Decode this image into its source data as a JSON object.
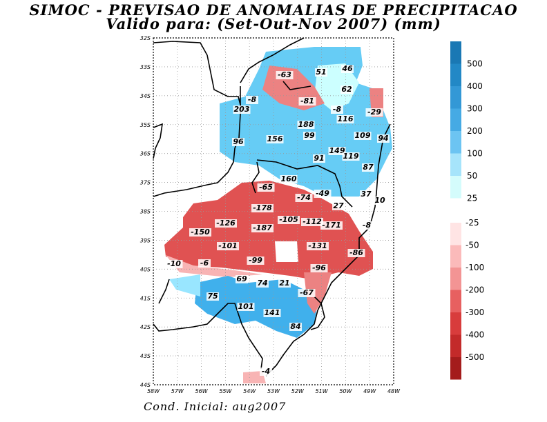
{
  "header": {
    "title": "SIMOC - PREVISAO DE ANOMALIAS DE PRECIPITACAO",
    "subtitle": "Valido para: (Set-Out-Nov 2007) (mm)"
  },
  "footer": {
    "initial_condition": "Cond. Inicial: aug2007"
  },
  "map": {
    "lat_labels": [
      "32S",
      "33S",
      "34S",
      "35S",
      "36S",
      "37S",
      "38S",
      "39S",
      "40S",
      "41S",
      "42S",
      "43S",
      "44S"
    ],
    "lon_labels": [
      "58W",
      "57W",
      "56W",
      "55W",
      "54W",
      "53W",
      "52W",
      "51W",
      "50W",
      "49W",
      "48W"
    ],
    "colors": {
      "pos_25": "#ccffff",
      "pos_50": "#99e6ff",
      "pos_100": "#66ccf5",
      "pos_200": "#40b0ec",
      "neg_25": "#ffe0e0",
      "neg_50": "#f8b4b4",
      "neg_100": "#ec8282",
      "neg_200": "#e05252",
      "border": "#000000",
      "grid": "#888888"
    },
    "values": [
      {
        "text": "-63"
      },
      {
        "text": "51"
      },
      {
        "text": "46"
      },
      {
        "text": "62"
      },
      {
        "text": "-8"
      },
      {
        "text": "-81"
      },
      {
        "text": "203"
      },
      {
        "text": "-8"
      },
      {
        "text": "-29"
      },
      {
        "text": "188"
      },
      {
        "text": "116"
      },
      {
        "text": "156"
      },
      {
        "text": "99"
      },
      {
        "text": "109"
      },
      {
        "text": "94"
      },
      {
        "text": "96"
      },
      {
        "text": "149"
      },
      {
        "text": "119"
      },
      {
        "text": "91"
      },
      {
        "text": "87"
      },
      {
        "text": "160"
      },
      {
        "text": "-65"
      },
      {
        "text": "-74"
      },
      {
        "text": "-49"
      },
      {
        "text": "37"
      },
      {
        "text": "10"
      },
      {
        "text": "27"
      },
      {
        "text": "-178"
      },
      {
        "text": "-126"
      },
      {
        "text": "-105"
      },
      {
        "text": "-112"
      },
      {
        "text": "-171"
      },
      {
        "text": "-8"
      },
      {
        "text": "-150"
      },
      {
        "text": "-187"
      },
      {
        "text": "-101"
      },
      {
        "text": "-131"
      },
      {
        "text": "-86"
      },
      {
        "text": "-99"
      },
      {
        "text": "-10"
      },
      {
        "text": "-6"
      },
      {
        "text": "-96"
      },
      {
        "text": "69"
      },
      {
        "text": "74"
      },
      {
        "text": "21"
      },
      {
        "text": "-67"
      },
      {
        "text": "75"
      },
      {
        "text": "101"
      },
      {
        "text": "141"
      },
      {
        "text": "84"
      },
      {
        "text": "-4"
      }
    ]
  },
  "legend": {
    "positive": [
      {
        "label": "500",
        "color": "#1a78b4"
      },
      {
        "label": "400",
        "color": "#2288c6"
      },
      {
        "label": "300",
        "color": "#3398d6"
      },
      {
        "label": "200",
        "color": "#45aae4"
      },
      {
        "label": "100",
        "color": "#6cc4f2"
      },
      {
        "label": "50",
        "color": "#a6e4fb"
      },
      {
        "label": "25",
        "color": "#d4fcfc"
      }
    ],
    "negative": [
      {
        "label": "-25",
        "color": "#ffe4e4"
      },
      {
        "label": "-50",
        "color": "#fbbaba"
      },
      {
        "label": "-100",
        "color": "#f39494"
      },
      {
        "label": "-200",
        "color": "#e76060"
      },
      {
        "label": "-300",
        "color": "#d83c3c"
      },
      {
        "label": "-400",
        "color": "#c32a2a"
      },
      {
        "label": "-500",
        "color": "#a41c1c"
      }
    ]
  }
}
